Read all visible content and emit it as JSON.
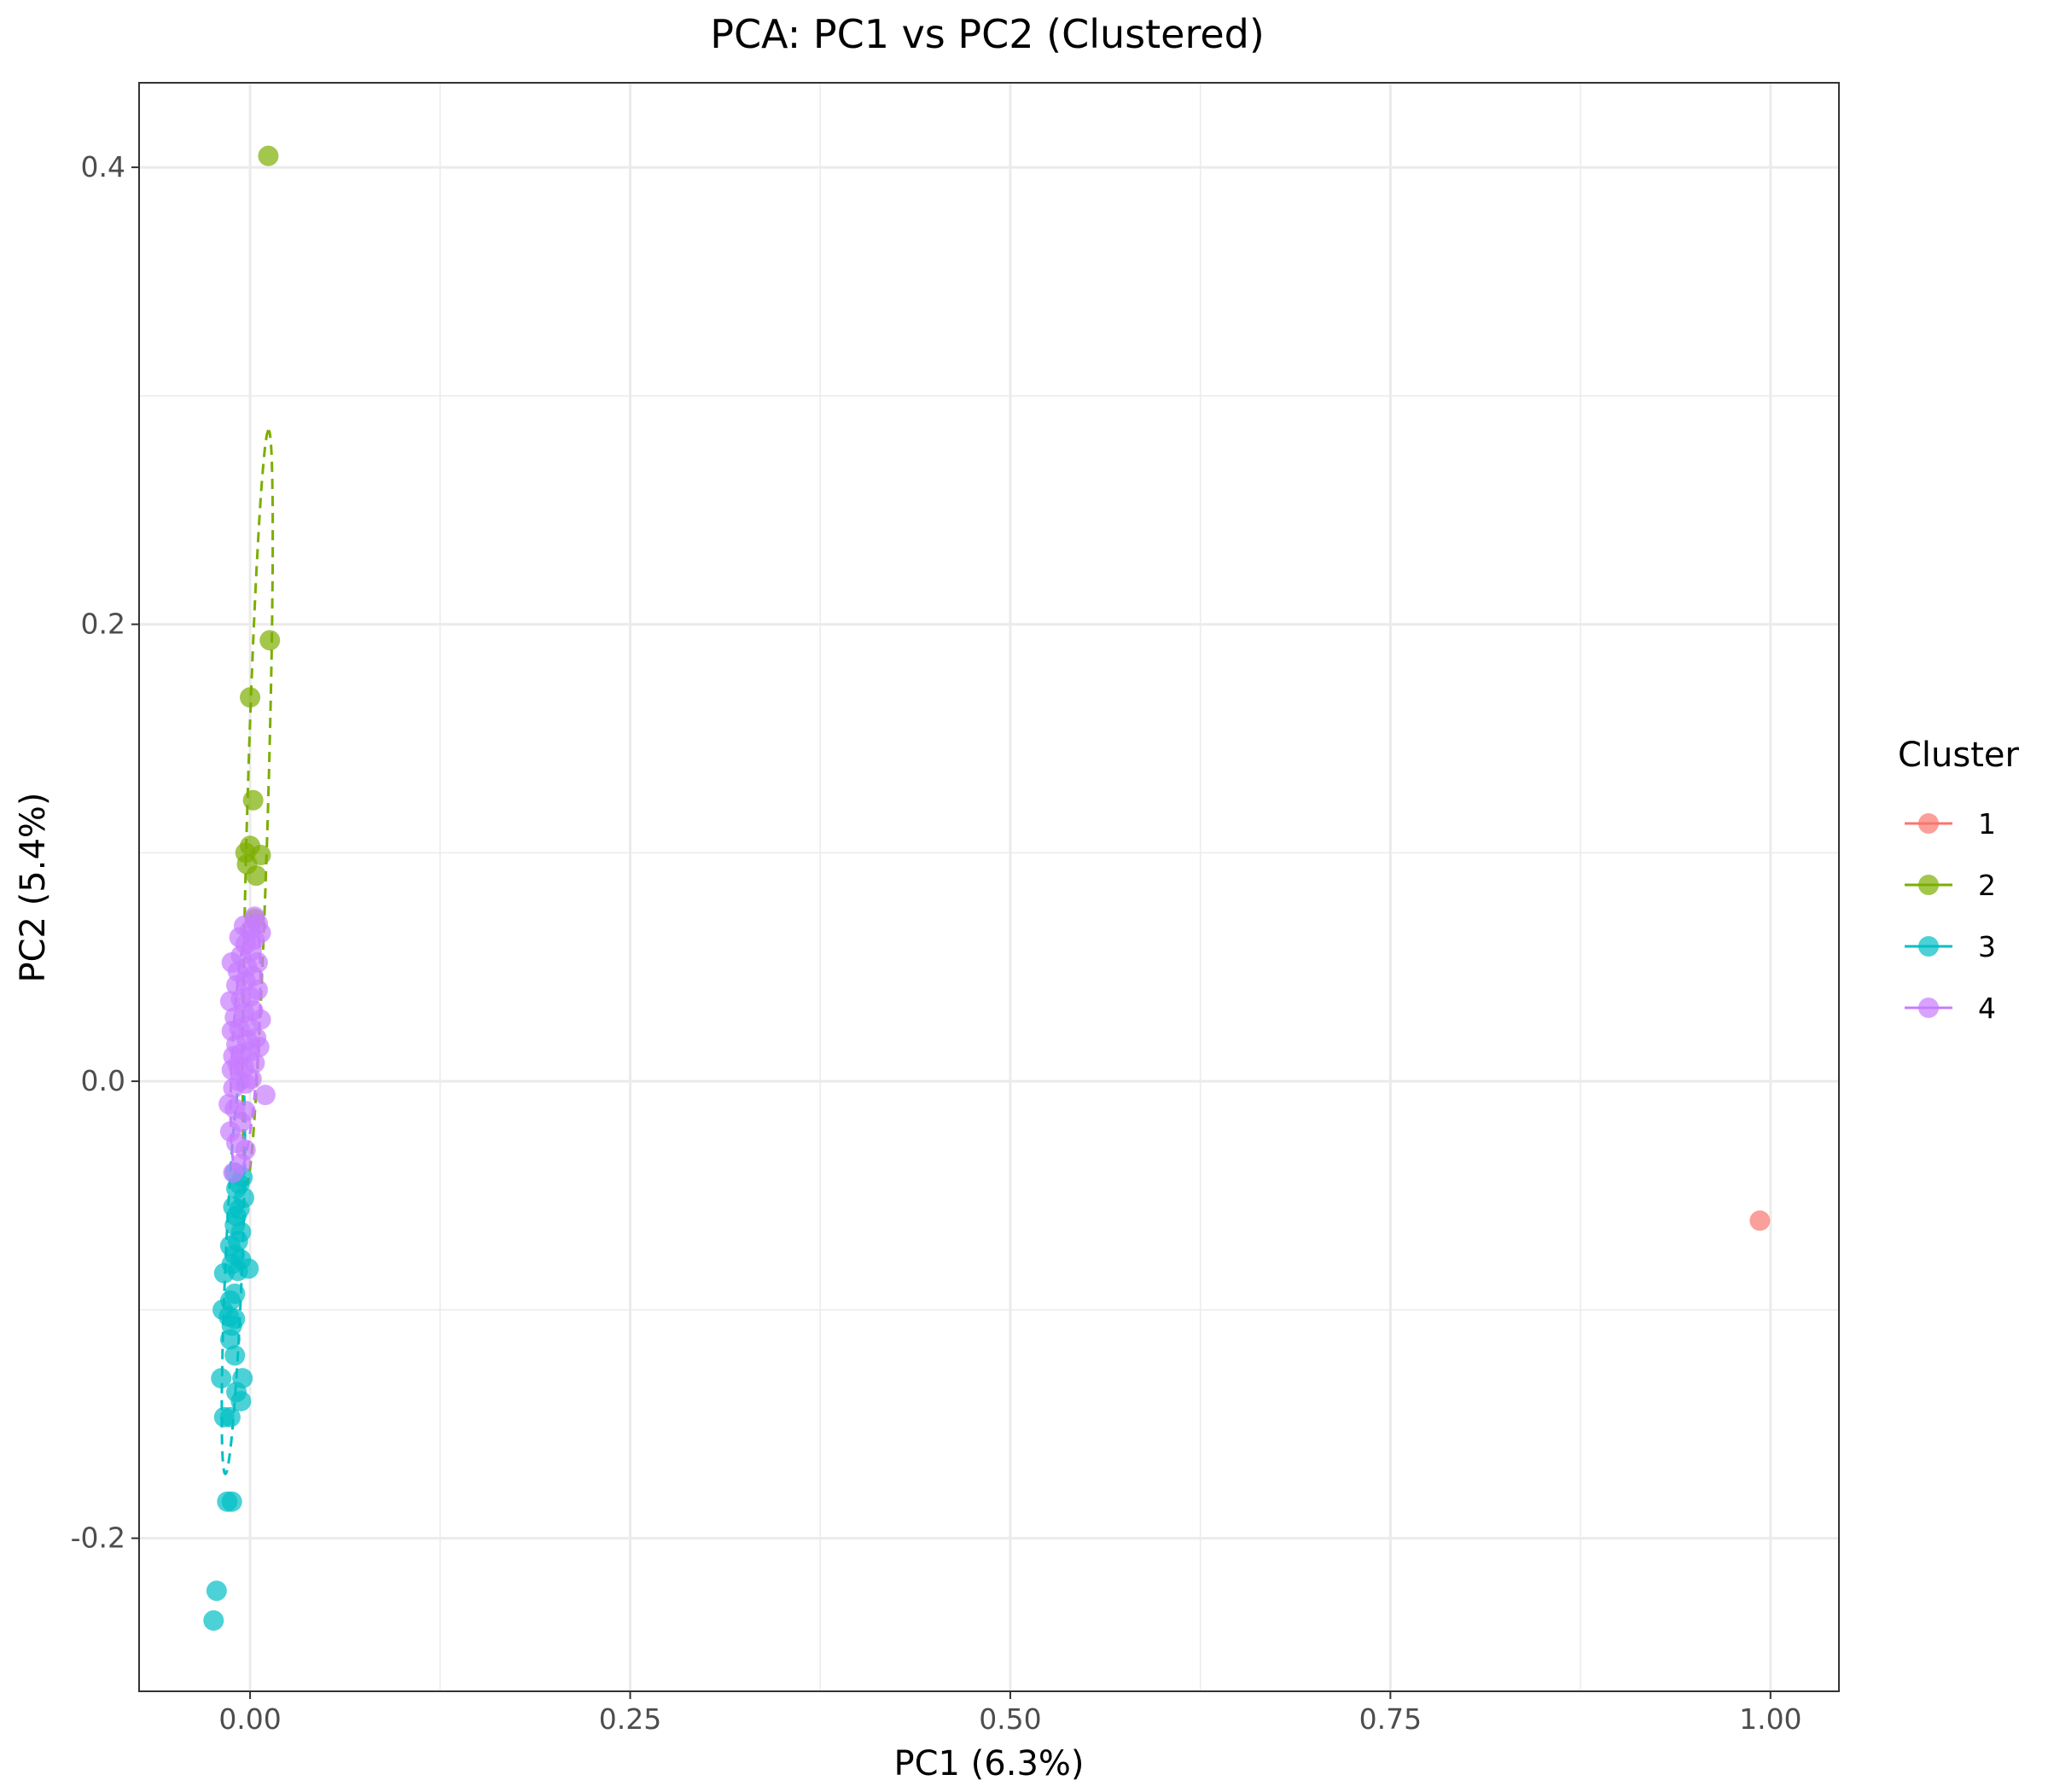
{
  "chart_data": {
    "type": "scatter",
    "title": "PCA: PC1 vs PC2 (Clustered)",
    "xlabel": "PC1 (6.3%)",
    "ylabel": "PC2 (5.4%)",
    "xlim": [
      -0.073,
      1.045
    ],
    "ylim": [
      -0.267,
      0.437
    ],
    "x_ticks": [
      0.0,
      0.25,
      0.5,
      0.75,
      1.0
    ],
    "x_tick_labels": [
      "0.00",
      "0.25",
      "0.50",
      "0.75",
      "1.00"
    ],
    "y_ticks": [
      -0.2,
      0.0,
      0.2,
      0.4
    ],
    "y_tick_labels": [
      "-0.2",
      "0.0",
      "0.2",
      "0.4"
    ],
    "x_minor_ticks": [
      0.125,
      0.375,
      0.625,
      0.875
    ],
    "y_minor_ticks": [
      -0.1,
      0.1,
      0.3
    ],
    "grid": true,
    "legend": {
      "title": "Cluster",
      "position": "right"
    },
    "series": [
      {
        "name": "1",
        "color": "#F8766D",
        "points": [
          [
            0.993,
            -0.061
          ]
        ]
      },
      {
        "name": "2",
        "color": "#7CAE00",
        "ellipse": {
          "cx": 0.005,
          "cy": 0.12,
          "angle_deg": 87.5,
          "semi_major": 0.165,
          "semi_minor": 0.0068
        },
        "points": [
          [
            0.012,
            0.405
          ],
          [
            0.013,
            0.193
          ],
          [
            0.0,
            0.168
          ],
          [
            0.002,
            0.123
          ],
          [
            0.0,
            0.103
          ],
          [
            -0.003,
            0.1
          ],
          [
            0.007,
            0.099
          ],
          [
            -0.002,
            0.095
          ],
          [
            0.004,
            0.09
          ],
          [
            0.003,
            0.071
          ]
        ]
      },
      {
        "name": "3",
        "color": "#00BFC4",
        "ellipse": {
          "cx": -0.011,
          "cy": -0.085,
          "angle_deg": 86.5,
          "semi_major": 0.087,
          "semi_minor": 0.0055
        },
        "points": [
          [
            -0.024,
            -0.236
          ],
          [
            -0.022,
            -0.223
          ],
          [
            -0.015,
            -0.184
          ],
          [
            -0.012,
            -0.184
          ],
          [
            -0.017,
            -0.147
          ],
          [
            -0.013,
            -0.147
          ],
          [
            -0.006,
            -0.14
          ],
          [
            -0.019,
            -0.13
          ],
          [
            -0.009,
            -0.136
          ],
          [
            -0.005,
            -0.13
          ],
          [
            -0.01,
            -0.12
          ],
          [
            -0.013,
            -0.113
          ],
          [
            -0.012,
            -0.107
          ],
          [
            -0.014,
            -0.103
          ],
          [
            -0.018,
            -0.1
          ],
          [
            -0.01,
            -0.104
          ],
          [
            -0.013,
            -0.096
          ],
          [
            -0.01,
            -0.093
          ],
          [
            -0.017,
            -0.084
          ],
          [
            -0.008,
            -0.083
          ],
          [
            -0.001,
            -0.082
          ],
          [
            -0.012,
            -0.08
          ],
          [
            -0.006,
            -0.078
          ],
          [
            -0.01,
            -0.076
          ],
          [
            -0.013,
            -0.072
          ],
          [
            -0.008,
            -0.07
          ],
          [
            -0.006,
            -0.066
          ],
          [
            -0.01,
            -0.063
          ],
          [
            -0.009,
            -0.059
          ],
          [
            -0.007,
            -0.056
          ],
          [
            -0.011,
            -0.055
          ],
          [
            -0.004,
            -0.051
          ],
          [
            -0.009,
            -0.047
          ],
          [
            -0.007,
            -0.045
          ],
          [
            -0.005,
            -0.042
          ],
          [
            -0.01,
            -0.04
          ]
        ]
      },
      {
        "name": "4",
        "color": "#C77CFF",
        "ellipse": {
          "cx": -0.003,
          "cy": 0.016,
          "angle_deg": 85,
          "semi_major": 0.057,
          "semi_minor": 0.0085
        },
        "points": [
          [
            -0.006,
            -0.036
          ],
          [
            -0.011,
            -0.04
          ],
          [
            -0.003,
            -0.03
          ],
          [
            -0.009,
            -0.027
          ],
          [
            -0.013,
            -0.022
          ],
          [
            -0.006,
            -0.018
          ],
          [
            -0.01,
            -0.012
          ],
          [
            -0.014,
            -0.01
          ],
          [
            -0.003,
            -0.013
          ],
          [
            0.01,
            -0.006
          ],
          [
            -0.011,
            -0.003
          ],
          [
            -0.007,
            0.0
          ],
          [
            -0.003,
            -0.001
          ],
          [
            0.001,
            0.001
          ],
          [
            -0.012,
            0.005
          ],
          [
            -0.008,
            0.007
          ],
          [
            -0.004,
            0.006
          ],
          [
            0.003,
            0.008
          ],
          [
            -0.011,
            0.011
          ],
          [
            -0.006,
            0.012
          ],
          [
            0.0,
            0.013
          ],
          [
            0.006,
            0.015
          ],
          [
            -0.009,
            0.016
          ],
          [
            -0.002,
            0.018
          ],
          [
            0.004,
            0.019
          ],
          [
            -0.012,
            0.022
          ],
          [
            -0.007,
            0.023
          ],
          [
            -0.001,
            0.024
          ],
          [
            0.007,
            0.027
          ],
          [
            -0.01,
            0.028
          ],
          [
            -0.004,
            0.03
          ],
          [
            0.002,
            0.031
          ],
          [
            -0.013,
            0.035
          ],
          [
            -0.006,
            0.036
          ],
          [
            0.0,
            0.037
          ],
          [
            0.005,
            0.04
          ],
          [
            -0.009,
            0.042
          ],
          [
            -0.003,
            0.044
          ],
          [
            0.002,
            0.046
          ],
          [
            -0.008,
            0.048
          ],
          [
            -0.002,
            0.05
          ],
          [
            0.005,
            0.052
          ],
          [
            -0.012,
            0.052
          ],
          [
            -0.006,
            0.055
          ],
          [
            0.001,
            0.057
          ],
          [
            -0.003,
            0.06
          ],
          [
            0.003,
            0.062
          ],
          [
            -0.007,
            0.063
          ],
          [
            0.007,
            0.065
          ],
          [
            0.0,
            0.066
          ],
          [
            0.005,
            0.069
          ],
          [
            -0.004,
            0.068
          ],
          [
            0.003,
            0.072
          ]
        ]
      }
    ]
  }
}
